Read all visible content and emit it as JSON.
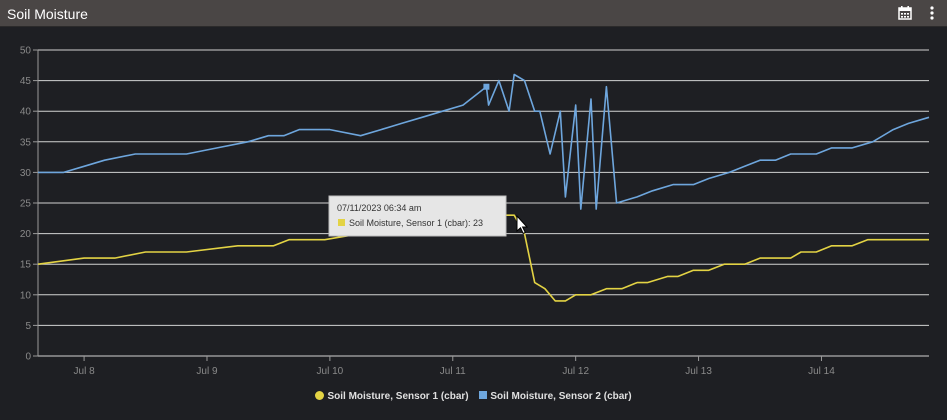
{
  "header": {
    "title": "Soil Moisture",
    "calendar_icon": "calendar-icon",
    "menu_icon": "kebab-menu-icon"
  },
  "colors": {
    "background": "#1e1f23",
    "titlebar": "#4a4645",
    "series1": "#e3d344",
    "series2": "#6ea6dd",
    "grid": "#e6e6e6"
  },
  "tooltip": {
    "date": "07/11/2023 06:34 am",
    "series_label": "Soil Moisture, Sensor 1 (cbar): 23"
  },
  "chart_data": {
    "type": "line",
    "title": "",
    "xlabel": "",
    "ylabel": "",
    "ylim": [
      0,
      50
    ],
    "yticks": [
      0,
      5,
      10,
      15,
      20,
      25,
      30,
      35,
      40,
      45,
      50
    ],
    "xlim": [
      "2023-07-07 15:00",
      "2023-07-14 21:00"
    ],
    "xticks": [
      {
        "label": "Jul 8",
        "time": "2023-07-08 00:00"
      },
      {
        "label": "Jul 9",
        "time": "2023-07-09 00:00"
      },
      {
        "label": "Jul 10",
        "time": "2023-07-10 00:00"
      },
      {
        "label": "Jul 11",
        "time": "2023-07-11 00:00"
      },
      {
        "label": "Jul 12",
        "time": "2023-07-12 00:00"
      },
      {
        "label": "Jul 13",
        "time": "2023-07-13 00:00"
      },
      {
        "label": "Jul 14",
        "time": "2023-07-14 00:00"
      }
    ],
    "grid": true,
    "legend_position": "bottom-center",
    "series": [
      {
        "name": "Soil Moisture, Sensor 1 (cbar)",
        "color": "#e3d344",
        "marker": "circle",
        "points": [
          [
            "2023-07-07 15:00",
            15
          ],
          [
            "2023-07-08 00:00",
            16
          ],
          [
            "2023-07-08 06:00",
            16
          ],
          [
            "2023-07-08 12:00",
            17
          ],
          [
            "2023-07-08 20:00",
            17
          ],
          [
            "2023-07-09 06:00",
            18
          ],
          [
            "2023-07-09 13:00",
            18
          ],
          [
            "2023-07-09 16:00",
            19
          ],
          [
            "2023-07-09 23:00",
            19
          ],
          [
            "2023-07-10 06:00",
            20
          ],
          [
            "2023-07-10 12:00",
            20
          ],
          [
            "2023-07-10 20:00",
            21
          ],
          [
            "2023-07-11 04:00",
            22
          ],
          [
            "2023-07-11 06:34",
            23
          ],
          [
            "2023-07-11 12:00",
            23
          ],
          [
            "2023-07-11 14:00",
            20
          ],
          [
            "2023-07-11 16:00",
            12
          ],
          [
            "2023-07-11 18:00",
            11
          ],
          [
            "2023-07-11 20:00",
            9
          ],
          [
            "2023-07-11 22:00",
            9
          ],
          [
            "2023-07-12 00:00",
            10
          ],
          [
            "2023-07-12 03:00",
            10
          ],
          [
            "2023-07-12 06:00",
            11
          ],
          [
            "2023-07-12 09:00",
            11
          ],
          [
            "2023-07-12 12:00",
            12
          ],
          [
            "2023-07-12 14:00",
            12
          ],
          [
            "2023-07-12 18:00",
            13
          ],
          [
            "2023-07-12 20:00",
            13
          ],
          [
            "2023-07-12 23:00",
            14
          ],
          [
            "2023-07-13 02:00",
            14
          ],
          [
            "2023-07-13 05:00",
            15
          ],
          [
            "2023-07-13 09:00",
            15
          ],
          [
            "2023-07-13 12:00",
            16
          ],
          [
            "2023-07-13 18:00",
            16
          ],
          [
            "2023-07-13 20:00",
            17
          ],
          [
            "2023-07-13 23:00",
            17
          ],
          [
            "2023-07-14 02:00",
            18
          ],
          [
            "2023-07-14 06:00",
            18
          ],
          [
            "2023-07-14 09:00",
            19
          ],
          [
            "2023-07-14 21:00",
            19
          ]
        ]
      },
      {
        "name": "Soil Moisture, Sensor 2 (cbar)",
        "color": "#6ea6dd",
        "marker": "square",
        "points": [
          [
            "2023-07-07 15:00",
            30
          ],
          [
            "2023-07-07 20:00",
            30
          ],
          [
            "2023-07-08 00:00",
            31
          ],
          [
            "2023-07-08 04:00",
            32
          ],
          [
            "2023-07-08 10:00",
            33
          ],
          [
            "2023-07-08 20:00",
            33
          ],
          [
            "2023-07-09 02:00",
            34
          ],
          [
            "2023-07-09 08:00",
            35
          ],
          [
            "2023-07-09 12:00",
            36
          ],
          [
            "2023-07-09 15:00",
            36
          ],
          [
            "2023-07-09 18:00",
            37
          ],
          [
            "2023-07-10 00:00",
            37
          ],
          [
            "2023-07-10 06:00",
            36
          ],
          [
            "2023-07-10 10:00",
            37
          ],
          [
            "2023-07-10 14:00",
            38
          ],
          [
            "2023-07-10 18:00",
            39
          ],
          [
            "2023-07-10 22:00",
            40
          ],
          [
            "2023-07-11 02:00",
            41
          ],
          [
            "2023-07-11 07:00",
            41
          ],
          [
            "2023-07-11 11:00",
            40
          ],
          [
            "2023-07-11 17:00",
            40
          ],
          [
            "2023-07-11 21:00",
            40
          ],
          [
            "2023-07-12 00:00",
            41
          ],
          [
            "2023-07-12 03:00",
            42
          ],
          [
            "2023-07-12 06:00",
            44
          ],
          [
            "2023-07-11 06:34",
            44
          ],
          [
            "2023-07-11 09:00",
            45
          ],
          [
            "2023-07-11 12:00",
            46
          ],
          [
            "2023-07-11 14:00",
            45
          ],
          [
            "2023-07-11 16:00",
            40
          ],
          [
            "2023-07-11 19:00",
            33
          ],
          [
            "2023-07-11 22:00",
            26
          ],
          [
            "2023-07-12 01:00",
            24
          ],
          [
            "2023-07-12 04:00",
            24
          ],
          [
            "2023-07-12 08:00",
            25
          ],
          [
            "2023-07-12 12:00",
            26
          ],
          [
            "2023-07-12 15:00",
            27
          ],
          [
            "2023-07-12 19:00",
            28
          ],
          [
            "2023-07-12 23:00",
            28
          ],
          [
            "2023-07-13 02:00",
            29
          ],
          [
            "2023-07-13 06:00",
            30
          ],
          [
            "2023-07-13 09:00",
            31
          ],
          [
            "2023-07-13 12:00",
            32
          ],
          [
            "2023-07-13 15:00",
            32
          ],
          [
            "2023-07-13 18:00",
            33
          ],
          [
            "2023-07-13 23:00",
            33
          ],
          [
            "2023-07-14 02:00",
            34
          ],
          [
            "2023-07-14 06:00",
            34
          ],
          [
            "2023-07-14 10:00",
            35
          ],
          [
            "2023-07-14 14:00",
            37
          ],
          [
            "2023-07-14 17:00",
            38
          ],
          [
            "2023-07-14 21:00",
            39
          ]
        ]
      }
    ],
    "highlight": {
      "series": 0,
      "time": "2023-07-11 06:34",
      "value": 23
    }
  }
}
